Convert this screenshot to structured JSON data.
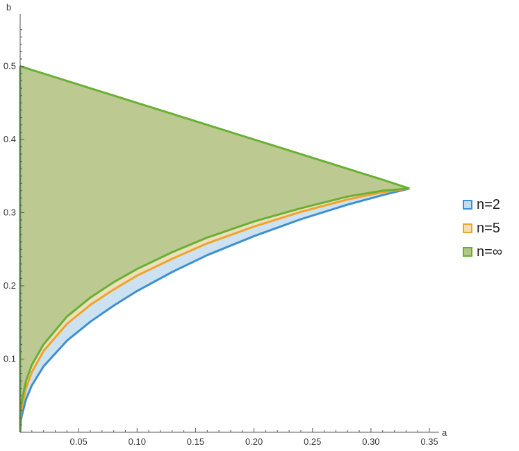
{
  "chart_data": {
    "type": "area",
    "xlabel": "a",
    "ylabel": "b",
    "xlim": [
      0,
      0.35
    ],
    "ylim": [
      0,
      0.55
    ],
    "x_ticks": [
      "0.05",
      "0.10",
      "0.15",
      "0.20",
      "0.25",
      "0.30",
      "0.35"
    ],
    "y_ticks": [
      "0.1",
      "0.2",
      "0.3",
      "0.4",
      "0.5"
    ],
    "grid": false,
    "legend_position": "right",
    "series": [
      {
        "name": "n=2",
        "color": "#3d8fd1",
        "fill": "#c3ddef",
        "x": [
          0,
          0.001,
          0.005,
          0.01,
          0.02,
          0.04,
          0.06,
          0.08,
          0.1,
          0.13,
          0.16,
          0.2,
          0.24,
          0.28,
          0.31,
          0.333
        ],
        "y_lower": [
          0,
          0.02,
          0.045,
          0.064,
          0.09,
          0.125,
          0.151,
          0.173,
          0.193,
          0.219,
          0.242,
          0.268,
          0.291,
          0.311,
          0.324,
          0.333
        ],
        "y_upper": [
          0.5,
          0.4995,
          0.4975,
          0.495,
          0.49,
          0.48,
          0.47,
          0.46,
          0.45,
          0.435,
          0.42,
          0.4,
          0.38,
          0.36,
          0.345,
          0.333
        ]
      },
      {
        "name": "n=5",
        "color": "#f0a32a",
        "fill": "#f2dfb4",
        "x": [
          0,
          0.001,
          0.005,
          0.01,
          0.02,
          0.04,
          0.06,
          0.08,
          0.1,
          0.13,
          0.16,
          0.2,
          0.24,
          0.28,
          0.31,
          0.333
        ],
        "y_lower": [
          0,
          0.03,
          0.06,
          0.082,
          0.111,
          0.148,
          0.174,
          0.195,
          0.214,
          0.237,
          0.258,
          0.281,
          0.301,
          0.318,
          0.328,
          0.333
        ],
        "y_upper": [
          0.5,
          0.4995,
          0.4975,
          0.495,
          0.49,
          0.48,
          0.47,
          0.46,
          0.45,
          0.435,
          0.42,
          0.4,
          0.38,
          0.36,
          0.345,
          0.333
        ]
      },
      {
        "name": "n=∞",
        "color": "#6aaf35",
        "fill": "#b3c68a",
        "x": [
          0,
          0.001,
          0.005,
          0.01,
          0.02,
          0.04,
          0.06,
          0.08,
          0.1,
          0.13,
          0.16,
          0.2,
          0.24,
          0.28,
          0.31,
          0.333
        ],
        "y_lower": [
          0,
          0.04,
          0.07,
          0.092,
          0.12,
          0.158,
          0.184,
          0.205,
          0.223,
          0.246,
          0.266,
          0.288,
          0.306,
          0.322,
          0.33,
          0.333
        ],
        "y_upper": [
          0.5,
          0.4995,
          0.4975,
          0.495,
          0.49,
          0.48,
          0.47,
          0.46,
          0.45,
          0.435,
          0.42,
          0.4,
          0.38,
          0.36,
          0.345,
          0.333
        ]
      }
    ]
  }
}
